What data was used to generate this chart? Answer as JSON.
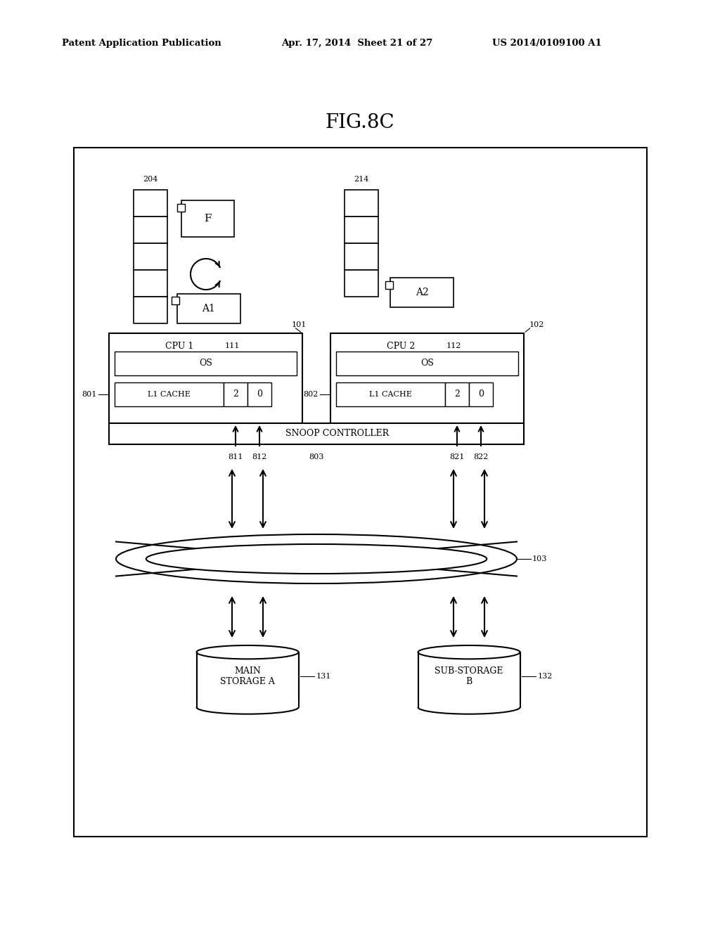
{
  "title": "FIG.8C",
  "header_left": "Patent Application Publication",
  "header_mid": "Apr. 17, 2014  Sheet 21 of 27",
  "header_right": "US 2014/0109100 A1",
  "bg_color": "#ffffff"
}
